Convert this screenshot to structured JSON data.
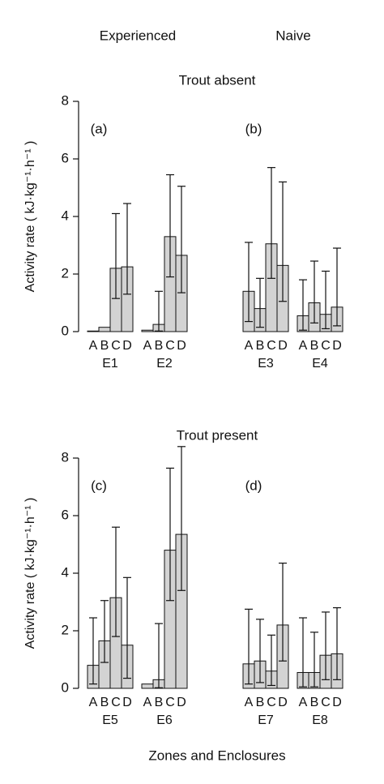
{
  "column_labels": [
    "Experienced",
    "Naive"
  ],
  "xlabel": "Zones and Enclosures",
  "chart_data": [
    {
      "type": "bar",
      "title": "Trout absent",
      "ylabel": "Activity rate ( kJ·kg⁻¹·h⁻¹ )",
      "ylim": [
        0,
        8
      ],
      "yticks": [
        0,
        2,
        4,
        6,
        8
      ],
      "color": "#d3d3d3",
      "panels": [
        {
          "label": "(a)",
          "groups": [
            {
              "name": "E1",
              "categories": [
                "A",
                "B",
                "C",
                "D"
              ],
              "values": [
                0.02,
                0.15,
                2.2,
                2.25
              ],
              "lower": [
                null,
                null,
                1.15,
                1.3
              ],
              "upper": [
                null,
                null,
                4.1,
                4.45
              ]
            },
            {
              "name": "E2",
              "categories": [
                "A",
                "B",
                "C",
                "D"
              ],
              "values": [
                0.05,
                0.25,
                3.3,
                2.65
              ],
              "lower": [
                null,
                0.02,
                1.9,
                1.35
              ],
              "upper": [
                null,
                1.4,
                5.45,
                5.05
              ]
            }
          ]
        },
        {
          "label": "(b)",
          "groups": [
            {
              "name": "E3",
              "categories": [
                "A",
                "B",
                "C",
                "D"
              ],
              "values": [
                1.4,
                0.8,
                3.05,
                2.3
              ],
              "lower": [
                0.35,
                0.15,
                1.85,
                1.05
              ],
              "upper": [
                3.1,
                1.85,
                5.7,
                5.2
              ]
            },
            {
              "name": "E4",
              "categories": [
                "A",
                "B",
                "C",
                "D"
              ],
              "values": [
                0.55,
                1.0,
                0.6,
                0.85
              ],
              "lower": [
                0.05,
                0.3,
                0.1,
                0.2
              ],
              "upper": [
                1.8,
                2.45,
                2.1,
                2.9
              ]
            }
          ]
        }
      ]
    },
    {
      "type": "bar",
      "title": "Trout present",
      "ylabel": "Activity rate ( kJ·kg⁻¹·h⁻¹ )",
      "ylim": [
        0,
        8
      ],
      "yticks": [
        0,
        2,
        4,
        6,
        8
      ],
      "color": "#d3d3d3",
      "panels": [
        {
          "label": "(c)",
          "groups": [
            {
              "name": "E5",
              "categories": [
                "A",
                "B",
                "C",
                "D"
              ],
              "values": [
                0.8,
                1.65,
                3.15,
                1.5
              ],
              "lower": [
                0.15,
                0.9,
                1.8,
                0.35
              ],
              "upper": [
                2.45,
                3.05,
                5.6,
                3.85
              ]
            },
            {
              "name": "E6",
              "categories": [
                "A",
                "B",
                "C",
                "D"
              ],
              "values": [
                0.15,
                0.3,
                4.8,
                5.35
              ],
              "lower": [
                null,
                0.02,
                3.05,
                3.4
              ],
              "upper": [
                null,
                2.25,
                7.65,
                8.4
              ]
            }
          ]
        },
        {
          "label": "(d)",
          "groups": [
            {
              "name": "E7",
              "categories": [
                "A",
                "B",
                "C",
                "D"
              ],
              "values": [
                0.85,
                0.95,
                0.6,
                2.2
              ],
              "lower": [
                0.15,
                0.2,
                0.1,
                0.95
              ],
              "upper": [
                2.75,
                2.4,
                1.85,
                4.35
              ]
            },
            {
              "name": "E8",
              "categories": [
                "A",
                "B",
                "C",
                "D"
              ],
              "values": [
                0.55,
                0.55,
                1.15,
                1.2
              ],
              "lower": [
                0.05,
                0.05,
                0.3,
                0.3
              ],
              "upper": [
                2.45,
                1.95,
                2.65,
                2.8
              ]
            }
          ]
        }
      ]
    }
  ]
}
